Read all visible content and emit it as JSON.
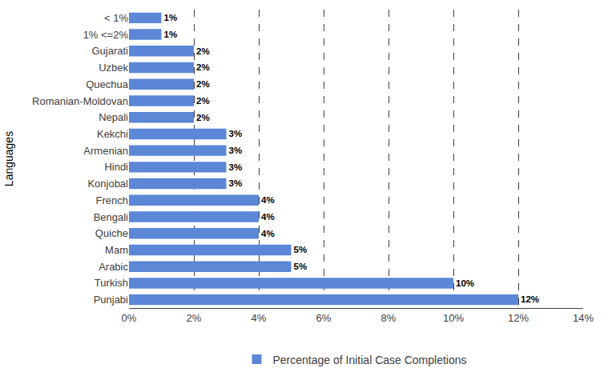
{
  "chart_data": {
    "type": "bar",
    "orientation": "horizontal",
    "y_label": "Languages",
    "categories": [
      "Punjabi",
      "Turkish",
      "Arabic",
      "Mam",
      "Quiche",
      "Bengali",
      "French",
      "Konjobal",
      "Hindi",
      "Armenian",
      "Kekchi",
      "Nepali",
      "Romanian-Moldovan",
      "Quechua",
      "Uzbek",
      "Gujarati",
      "1% <=2%",
      "< 1%"
    ],
    "series": [
      {
        "name": "Percentage of Initial Case Completions",
        "color": "#5b87d6",
        "values": [
          12,
          10,
          5,
          5,
          4,
          4,
          4,
          3,
          3,
          3,
          3,
          2,
          2,
          2,
          2,
          2,
          1,
          1
        ],
        "value_labels": [
          "12%",
          "10%",
          "5%",
          "5%",
          "4%",
          "4%",
          "4%",
          "3%",
          "3%",
          "3%",
          "3%",
          "2%",
          "2%",
          "2%",
          "2%",
          "2%",
          "1%",
          "1%"
        ]
      }
    ],
    "xlim": [
      0,
      14
    ],
    "xticks": [
      {
        "value": 0,
        "label": "0%"
      },
      {
        "value": 2,
        "label": "2%"
      },
      {
        "value": 4,
        "label": "4%"
      },
      {
        "value": 6,
        "label": "6%"
      },
      {
        "value": 8,
        "label": "8%"
      },
      {
        "value": 10,
        "label": "10%"
      },
      {
        "value": 12,
        "label": "12%"
      },
      {
        "value": 14,
        "label": "14%"
      }
    ],
    "grid": true,
    "legend": "bottom",
    "data_labels": true
  }
}
